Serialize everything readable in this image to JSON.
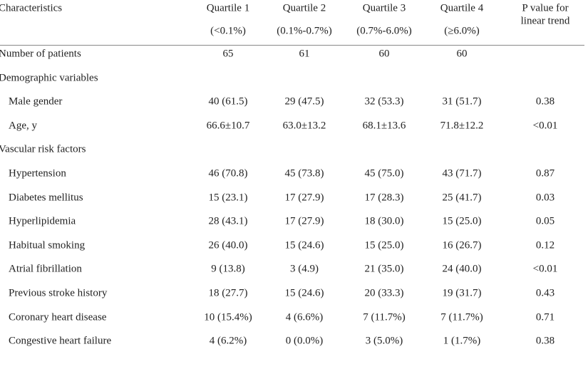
{
  "table": {
    "header": [
      {
        "label": "Characteristics"
      },
      {
        "lines": [
          "Quartile 1",
          "(<0.1%)"
        ]
      },
      {
        "lines": [
          "Quartile 2",
          "(0.1%-0.7%)"
        ]
      },
      {
        "lines": [
          "Quartile 3",
          "(0.7%-6.0%)"
        ]
      },
      {
        "lines": [
          "Quartile 4",
          "(≥6.0%)"
        ]
      },
      {
        "lines": [
          "P value for",
          "linear trend"
        ]
      }
    ],
    "rows": [
      {
        "label": "Number of patients",
        "cells": [
          "65",
          "61",
          "60",
          "60"
        ]
      },
      {
        "label": "Demographic variables"
      },
      {
        "label": "Male gender",
        "indent": true,
        "cells": [
          "40 (61.5)",
          "29 (47.5)",
          "32 (53.3)",
          "31 (51.7)",
          "0.38"
        ]
      },
      {
        "label": "Age, y",
        "indent": true,
        "cells": [
          "66.6±10.7",
          "63.0±13.2",
          "68.1±13.6",
          "71.8±12.2",
          "<0.01"
        ]
      },
      {
        "label": "Vascular risk factors"
      },
      {
        "label": "Hypertension",
        "indent": true,
        "cells": [
          "46 (70.8)",
          "45 (73.8)",
          "45 (75.0)",
          "43 (71.7)",
          "0.87"
        ]
      },
      {
        "label": "Diabetes mellitus",
        "indent": true,
        "cells": [
          "15 (23.1)",
          "17 (27.9)",
          "17 (28.3)",
          "25 (41.7)",
          "0.03"
        ]
      },
      {
        "label": "Hyperlipidemia",
        "indent": true,
        "cells": [
          "28 (43.1)",
          "17 (27.9)",
          "18 (30.0)",
          "15 (25.0)",
          "0.05"
        ]
      },
      {
        "label": "Habitual smoking",
        "indent": true,
        "cells": [
          "26 (40.0)",
          "15 (24.6)",
          "15 (25.0)",
          "16 (26.7)",
          "0.12"
        ]
      },
      {
        "label": "Atrial fibrillation",
        "indent": true,
        "cells": [
          "9 (13.8)",
          "3 (4.9)",
          "21 (35.0)",
          "24 (40.0)",
          "<0.01"
        ]
      },
      {
        "label": "Previous stroke history",
        "indent": true,
        "cells": [
          "18 (27.7)",
          "15 (24.6)",
          "20 (33.3)",
          "19 (31.7)",
          "0.43"
        ]
      },
      {
        "label": "Coronary heart disease",
        "indent": true,
        "cells": [
          "10 (15.4%)",
          "4 (6.6%)",
          "7 (11.7%)",
          "7 (11.7%)",
          "0.71"
        ]
      },
      {
        "label": "Congestive heart failure",
        "indent": true,
        "cells": [
          "4 (6.2%)",
          "0 (0.0%)",
          "3 (5.0%)",
          "1 (1.7%)",
          "0.38"
        ]
      }
    ]
  }
}
